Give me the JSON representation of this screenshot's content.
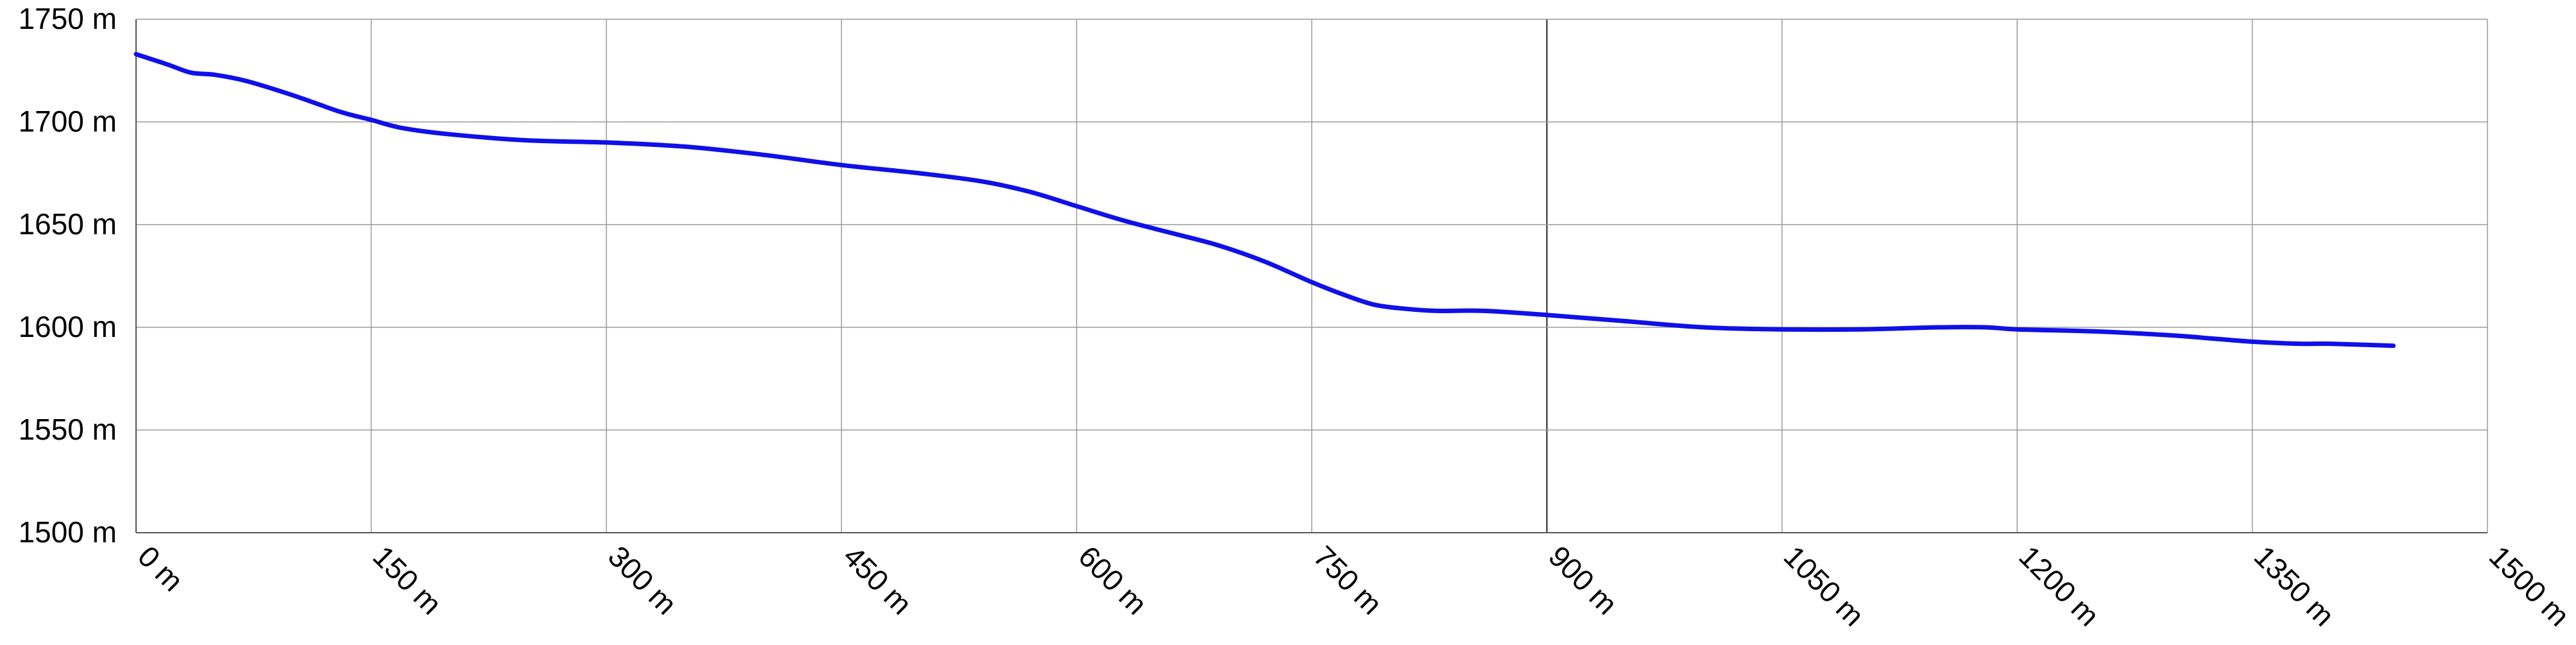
{
  "chart_data": {
    "type": "line",
    "title": "",
    "xlabel": "",
    "ylabel": "",
    "xlim": [
      0,
      1500
    ],
    "ylim": [
      1500,
      1750
    ],
    "grid": true,
    "x_ticks": [
      "0 m",
      "150 m",
      "300 m",
      "450 m",
      "600 m",
      "750 m",
      "900 m",
      "1050 m",
      "1200 m",
      "1350 m",
      "1500 m"
    ],
    "x_tick_values": [
      0,
      150,
      300,
      450,
      600,
      750,
      900,
      1050,
      1200,
      1350,
      1500
    ],
    "y_ticks": [
      "1750 m",
      "1700 m",
      "1650 m",
      "1600 m",
      "1550 m",
      "1500 m"
    ],
    "y_tick_values": [
      1750,
      1700,
      1650,
      1600,
      1550,
      1500
    ],
    "series": [
      {
        "color": "#1010e8",
        "x": [
          0,
          20,
          35,
          50,
          70,
          100,
          130,
          150,
          170,
          200,
          250,
          300,
          350,
          400,
          450,
          500,
          540,
          570,
          600,
          630,
          660,
          690,
          720,
          750,
          770,
          790,
          810,
          830,
          860,
          900,
          950,
          1000,
          1050,
          1100,
          1150,
          1180,
          1200,
          1250,
          1300,
          1350,
          1380,
          1400,
          1440
        ],
        "values": [
          1733,
          1728,
          1724,
          1723,
          1720,
          1713,
          1705,
          1701,
          1697,
          1694,
          1691,
          1690,
          1688,
          1684,
          1679,
          1675,
          1671,
          1666,
          1659,
          1652,
          1646,
          1640,
          1632,
          1622,
          1616,
          1611,
          1609,
          1608,
          1608,
          1606,
          1603,
          1600,
          1599,
          1599,
          1600,
          1600,
          1599,
          1598,
          1596,
          1593,
          1592,
          1592,
          1591
        ]
      }
    ]
  }
}
